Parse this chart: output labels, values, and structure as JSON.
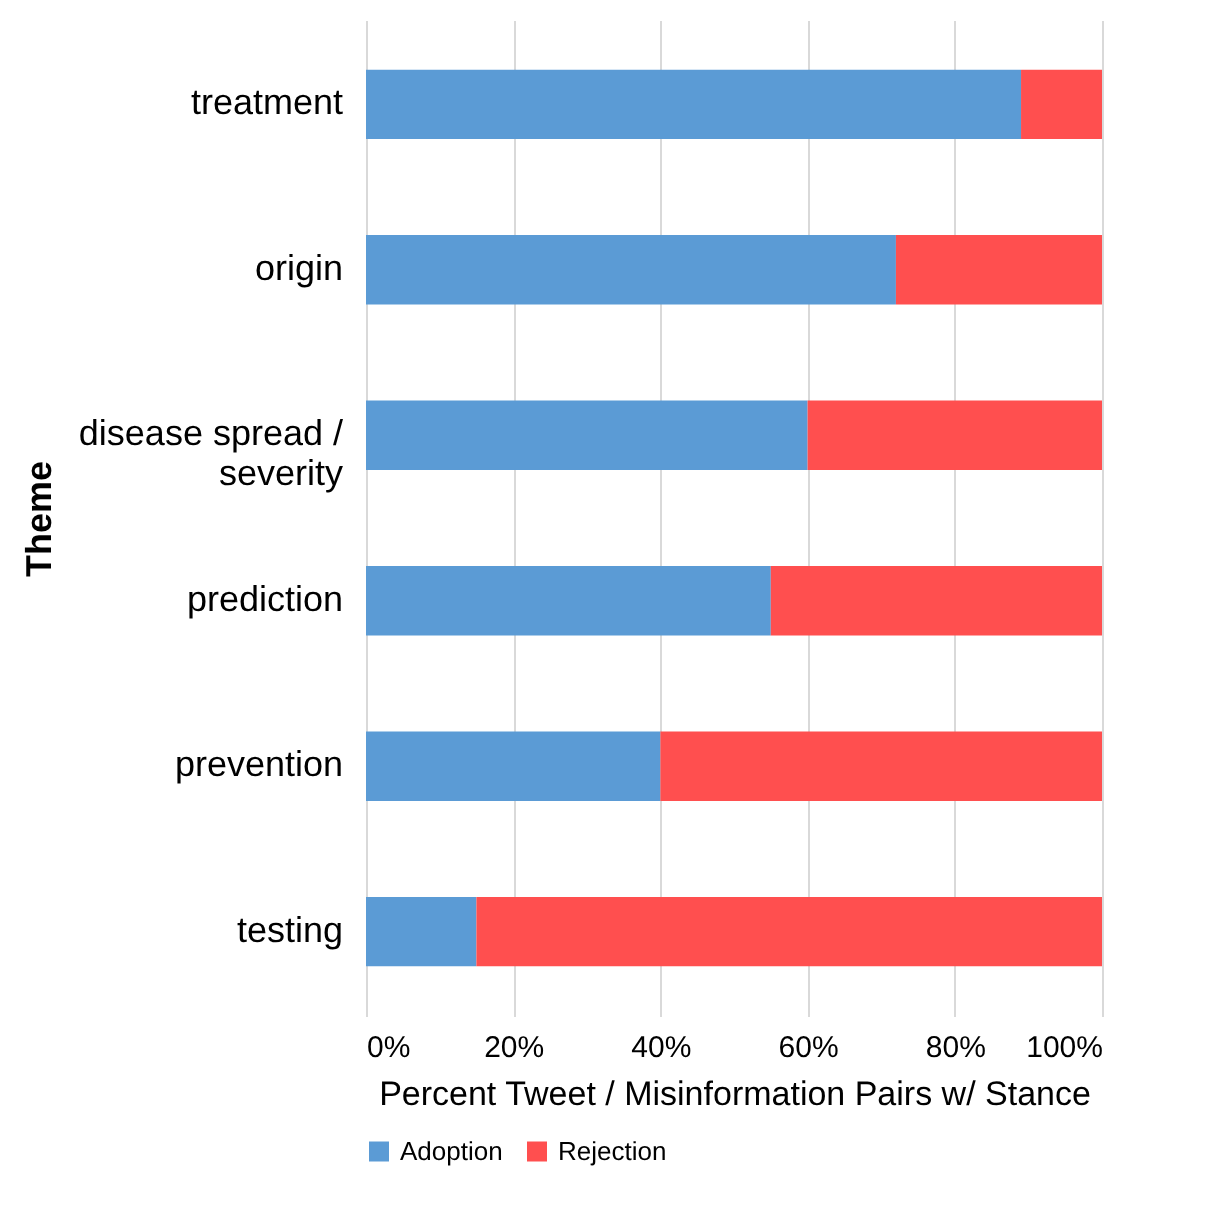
{
  "chart_data": {
    "type": "bar",
    "orientation": "horizontal",
    "stacked": true,
    "categories": [
      "treatment",
      "origin",
      "disease spread / severity",
      "prediction",
      "prevention",
      "testing"
    ],
    "series": [
      {
        "name": "Adoption",
        "color": "#5b9bd5",
        "values": [
          89,
          72,
          60,
          55,
          40,
          15
        ]
      },
      {
        "name": "Rejection",
        "color": "#ff4f4f",
        "values": [
          11,
          28,
          40,
          45,
          60,
          85
        ]
      }
    ],
    "xlim": [
      0,
      100
    ],
    "xticks": [
      {
        "value": 0,
        "label": "0%"
      },
      {
        "value": 20,
        "label": "20%"
      },
      {
        "value": 40,
        "label": "40%"
      },
      {
        "value": 60,
        "label": "60%"
      },
      {
        "value": 80,
        "label": "80%"
      },
      {
        "value": 100,
        "label": "100%"
      }
    ],
    "xlabel": "Percent Tweet / Misinformation Pairs w/ Stance",
    "ylabel": "Theme",
    "grid": "x",
    "legend": "bottom"
  }
}
